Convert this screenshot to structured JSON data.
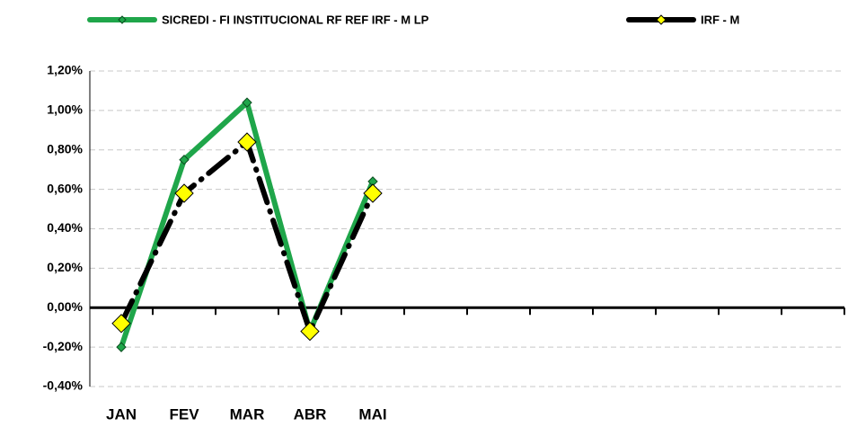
{
  "chart_data": {
    "type": "line",
    "categories": [
      "JAN",
      "FEV",
      "MAR",
      "ABR",
      "MAI",
      null,
      null,
      null,
      null,
      null,
      null,
      null
    ],
    "series": [
      {
        "name": "SICREDI - FI INSTITUCIONAL RF REF IRF - M LP",
        "color": "#1fa64a",
        "values": [
          -0.2,
          0.75,
          1.04,
          -0.12,
          0.64,
          null,
          null,
          null,
          null,
          null,
          null,
          null
        ]
      },
      {
        "name": "IRF - M",
        "color": "#000000",
        "values": [
          -0.08,
          0.58,
          0.84,
          -0.12,
          0.58,
          null,
          null,
          null,
          null,
          null,
          null,
          null
        ]
      }
    ],
    "ylim": [
      -0.4,
      1.2
    ],
    "yticks": [
      {
        "value": -0.4,
        "label": "-0,40%"
      },
      {
        "value": -0.2,
        "label": "-0,20%"
      },
      {
        "value": 0,
        "label": "0,00%"
      },
      {
        "value": 0.2,
        "label": "0,20%"
      },
      {
        "value": 0.4,
        "label": "0,40%"
      },
      {
        "value": 0.6,
        "label": "0,60%"
      },
      {
        "value": 0.8,
        "label": "0,80%"
      },
      {
        "value": 1.0,
        "label": "1,00%"
      },
      {
        "value": 1.2,
        "label": "1,20%"
      }
    ],
    "grid": true,
    "legend": "top"
  }
}
